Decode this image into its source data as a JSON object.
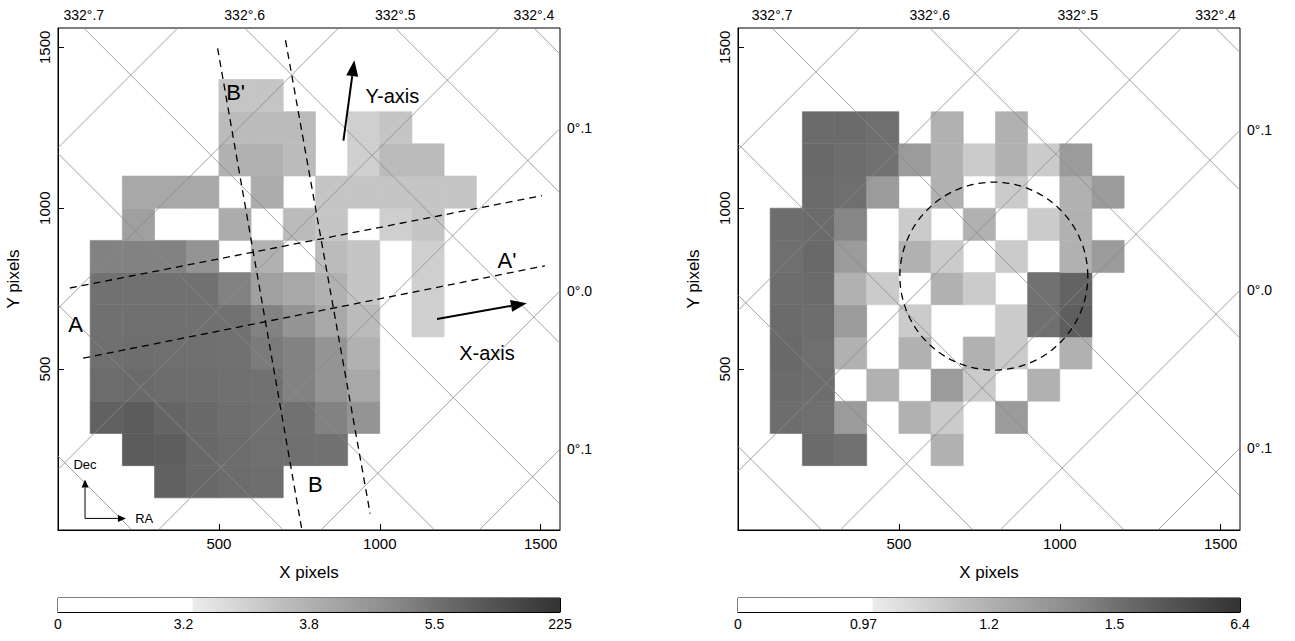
{
  "chart_data": [
    {
      "type": "heatmap",
      "x_label": "X pixels",
      "y_label": "Y pixels",
      "xlim": [
        0,
        1560
      ],
      "ylim": [
        0,
        1560
      ],
      "xticks": [
        500,
        1000,
        1500
      ],
      "yticks": [
        500,
        1000,
        1500
      ],
      "x_edges": [
        0,
        100,
        200,
        300,
        400,
        500,
        600,
        700,
        800,
        900,
        1000,
        1100,
        1200,
        1300,
        1400,
        1500,
        1600
      ],
      "y_edges": [
        0,
        100,
        200,
        300,
        400,
        500,
        600,
        700,
        800,
        900,
        1000,
        1100,
        1200,
        1300,
        1400,
        1500,
        1600
      ],
      "cells": [
        [
          null,
          null,
          null,
          null,
          null,
          null,
          null,
          null,
          null,
          null,
          null,
          null,
          null,
          null,
          null,
          null
        ],
        [
          null,
          null,
          null,
          15,
          10,
          8,
          7,
          null,
          null,
          null,
          null,
          null,
          null,
          null,
          null,
          null
        ],
        [
          null,
          null,
          20,
          18,
          10,
          8,
          6.5,
          6,
          5.5,
          null,
          null,
          null,
          null,
          null,
          null,
          null
        ],
        [
          null,
          15,
          20,
          12,
          9,
          7,
          6,
          5.5,
          5,
          4.5,
          null,
          null,
          null,
          null,
          null,
          null
        ],
        [
          null,
          8,
          9,
          8,
          7,
          6,
          5.5,
          5,
          4.5,
          4,
          null,
          null,
          null,
          null,
          null,
          null
        ],
        [
          null,
          6.5,
          7,
          6.5,
          6,
          5.5,
          5.2,
          5,
          4.5,
          3.8,
          null,
          null,
          null,
          null,
          null,
          null
        ],
        [
          null,
          6,
          6,
          6,
          6,
          5.5,
          5,
          4.5,
          4,
          3.7,
          null,
          3.5,
          null,
          null,
          null,
          null
        ],
        [
          null,
          5.5,
          5.5,
          5.5,
          5.5,
          5,
          4.2,
          4,
          3.8,
          3.6,
          null,
          3.5,
          null,
          null,
          null,
          null
        ],
        [
          null,
          5,
          5,
          5,
          4.5,
          null,
          3.8,
          null,
          3.7,
          3.6,
          null,
          3.5,
          null,
          null,
          null,
          null
        ],
        [
          null,
          null,
          4.2,
          null,
          null,
          3.9,
          null,
          3.7,
          3.6,
          null,
          3.5,
          3.6,
          null,
          null,
          null,
          null
        ],
        [
          null,
          null,
          4,
          4,
          4,
          null,
          3.9,
          null,
          3.6,
          3.6,
          3.6,
          3.6,
          3.6,
          null,
          null,
          null
        ],
        [
          null,
          null,
          null,
          null,
          null,
          3.8,
          3.8,
          3.7,
          null,
          3.5,
          3.7,
          3.7,
          null,
          null,
          null,
          null
        ],
        [
          null,
          null,
          null,
          null,
          null,
          3.7,
          3.7,
          3.7,
          null,
          3.5,
          3.6,
          null,
          null,
          null,
          null,
          null
        ],
        [
          null,
          null,
          null,
          null,
          null,
          3.6,
          3.6,
          null,
          null,
          null,
          null,
          null,
          null,
          null,
          null,
          null
        ],
        [
          null,
          null,
          null,
          null,
          null,
          null,
          null,
          null,
          null,
          null,
          null,
          null,
          null,
          null,
          null,
          null
        ],
        [
          null,
          null,
          null,
          null,
          null,
          null,
          null,
          null,
          null,
          null,
          null,
          null,
          null,
          null,
          null,
          null
        ]
      ],
      "colorbar": {
        "range": [
          0,
          225
        ],
        "ticks": [
          0,
          3.2,
          3.8,
          5.5,
          225
        ]
      },
      "coord_grid": {
        "lon_lines": [
          {
            "top_x": -1330
          },
          {
            "top_x": -860
          },
          {
            "top_x": -390
          },
          {
            "top_x": 80,
            "label": "332°.7"
          },
          {
            "top_x": 580,
            "label": "332°.6"
          },
          {
            "top_x": 1048,
            "label": "332°.5"
          },
          {
            "top_x": 1479,
            "label": "332°.4"
          }
        ],
        "lat_lines": [
          {
            "right_y": 251,
            "label": "0°.1"
          },
          {
            "right_y": 743,
            "label": "0°.0"
          },
          {
            "right_y": 1248,
            "label": "0°.1"
          },
          {
            "right_y": 1748
          },
          {
            "right_y": 2248
          },
          {
            "right_y": 2748
          }
        ]
      },
      "annotations": {
        "lines": [
          {
            "points": [
              [
                37,
                752
              ],
              [
                1504,
                1039
              ]
            ],
            "line_style": "dashed"
          },
          {
            "points": [
              [
                78,
                534
              ],
              [
                1513,
                821
              ]
            ],
            "line_style": "dashed"
          },
          {
            "points": [
              [
                496,
                1497
              ],
              [
                758,
                0
              ]
            ],
            "line_style": "dashed"
          },
          {
            "points": [
              [
                707,
                1522
              ],
              [
                970,
                51
              ]
            ],
            "line_style": "dashed"
          }
        ],
        "labels": [
          {
            "text": "A",
            "x": 55,
            "y": 640
          },
          {
            "text": "A'",
            "x": 1395,
            "y": 836
          },
          {
            "text": "B",
            "x": 800,
            "y": 142
          },
          {
            "text": "B'",
            "x": 552,
            "y": 1360
          }
        ],
        "arrows": [
          {
            "from": [
              887,
              1210
            ],
            "to": [
              921,
              1460
            ],
            "text": "Y-axis",
            "text_at": [
              1039,
              1350
            ]
          },
          {
            "from": [
              1178,
              656
            ],
            "to": [
              1457,
              705
            ],
            "text": "X-axis",
            "text_at": [
              1333,
              550
            ]
          }
        ],
        "compass": [
          {
            "from": [
              84,
              36
            ],
            "to": [
              84,
              157
            ],
            "text": "Dec",
            "text_at": [
              84,
              205
            ]
          },
          {
            "from": [
              84,
              36
            ],
            "to": [
              211,
              36
            ],
            "text": "RA",
            "text_at": [
              268,
              36
            ]
          }
        ]
      }
    },
    {
      "type": "heatmap",
      "x_label": "X pixels",
      "y_label": "Y pixels",
      "xlim": [
        0,
        1560
      ],
      "ylim": [
        0,
        1560
      ],
      "xticks": [
        500,
        1000,
        1500
      ],
      "yticks": [
        500,
        1000,
        1500
      ],
      "x_edges": [
        0,
        100,
        200,
        300,
        400,
        500,
        600,
        700,
        800,
        900,
        1000,
        1100,
        1200,
        1300,
        1400,
        1500,
        1600
      ],
      "y_edges": [
        0,
        100,
        200,
        300,
        400,
        500,
        600,
        700,
        800,
        900,
        1000,
        1100,
        1200,
        1300,
        1400,
        1500,
        1600
      ],
      "cells": [
        [
          null,
          null,
          null,
          null,
          null,
          null,
          null,
          null,
          null,
          null,
          null,
          null,
          null,
          null,
          null,
          null
        ],
        [
          null,
          null,
          null,
          null,
          null,
          null,
          null,
          null,
          null,
          null,
          null,
          null,
          null,
          null,
          null,
          null
        ],
        [
          null,
          null,
          1.8,
          1.5,
          null,
          null,
          1.2,
          null,
          null,
          null,
          null,
          null,
          null,
          null,
          null,
          null
        ],
        [
          null,
          1.7,
          1.6,
          1.3,
          null,
          1.2,
          1.1,
          null,
          1.3,
          null,
          null,
          null,
          null,
          null,
          null,
          null
        ],
        [
          null,
          1.8,
          1.7,
          null,
          1.2,
          null,
          1.3,
          1.1,
          null,
          1.2,
          null,
          null,
          null,
          null,
          null,
          null
        ],
        [
          null,
          1.9,
          1.6,
          1.2,
          null,
          1.2,
          null,
          1.2,
          1.1,
          null,
          1.2,
          null,
          null,
          null,
          null,
          null
        ],
        [
          null,
          1.8,
          1.7,
          1.3,
          null,
          1.1,
          null,
          null,
          1.1,
          1.6,
          2.5,
          null,
          null,
          null,
          null,
          null
        ],
        [
          null,
          1.7,
          1.8,
          1.2,
          1.1,
          null,
          1.2,
          1.1,
          null,
          1.5,
          2.2,
          null,
          null,
          null,
          null,
          null
        ],
        [
          null,
          1.6,
          1.9,
          1.3,
          null,
          1.2,
          1.1,
          null,
          1.1,
          null,
          1.2,
          1.3,
          null,
          null,
          null,
          null
        ],
        [
          null,
          1.7,
          1.8,
          1.4,
          null,
          1.1,
          null,
          1.2,
          null,
          1.1,
          1.2,
          null,
          null,
          null,
          null,
          null
        ],
        [
          null,
          null,
          1.8,
          1.6,
          1.3,
          null,
          1.2,
          null,
          1.1,
          null,
          1.2,
          1.3,
          null,
          null,
          null,
          null
        ],
        [
          null,
          null,
          1.9,
          1.7,
          1.5,
          1.3,
          1.2,
          1.1,
          1.2,
          1.1,
          1.3,
          null,
          null,
          null,
          null,
          null
        ],
        [
          null,
          null,
          1.8,
          1.8,
          1.6,
          null,
          1.2,
          null,
          1.2,
          null,
          null,
          null,
          null,
          null,
          null,
          null
        ],
        [
          null,
          null,
          null,
          null,
          null,
          null,
          null,
          null,
          null,
          null,
          null,
          null,
          null,
          null,
          null,
          null
        ],
        [
          null,
          null,
          null,
          null,
          null,
          null,
          null,
          null,
          null,
          null,
          null,
          null,
          null,
          null,
          null,
          null
        ],
        [
          null,
          null,
          null,
          null,
          null,
          null,
          null,
          null,
          null,
          null,
          null,
          null,
          null,
          null,
          null,
          null
        ]
      ],
      "colorbar": {
        "range": [
          0,
          6.4
        ],
        "ticks": [
          0,
          0.97,
          1.2,
          1.5,
          6.4
        ]
      },
      "coord_grid": {
        "lon_lines": [
          {
            "top_x": -1300
          },
          {
            "top_x": -830
          },
          {
            "top_x": -360
          },
          {
            "top_x": 106,
            "label": "332°.7"
          },
          {
            "top_x": 596,
            "label": "332°.6"
          },
          {
            "top_x": 1056,
            "label": "332°.5"
          },
          {
            "top_x": 1484,
            "label": "332°.4"
          }
        ],
        "lat_lines": [
          {
            "right_y": 255,
            "label": "0°.1"
          },
          {
            "right_y": 745,
            "label": "0°.0"
          },
          {
            "right_y": 1242,
            "label": "0°.1"
          },
          {
            "right_y": 1742
          },
          {
            "right_y": 2242
          },
          {
            "right_y": 2742
          }
        ]
      },
      "annotations": {
        "circles": [
          {
            "center": [
              795,
              789
            ],
            "radius": 292,
            "line_style": "dashed"
          }
        ]
      }
    }
  ]
}
